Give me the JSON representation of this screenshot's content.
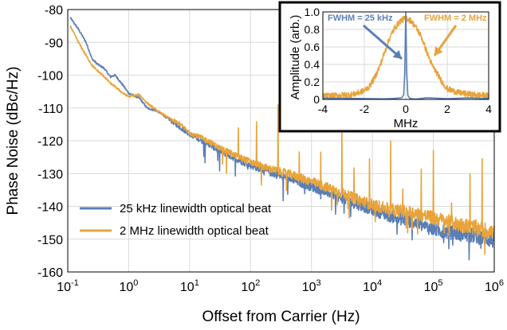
{
  "chart_data": [
    {
      "type": "line",
      "title": "",
      "xlabel": "Offset from Carrier (Hz)",
      "ylabel": "Phase Noise (dBc/Hz)",
      "xscale": "log",
      "xlim": [
        0.1,
        1000000
      ],
      "ylim": [
        -160,
        -80
      ],
      "x_ticks": [
        {
          "base": "10",
          "exp": "-1"
        },
        {
          "base": "10",
          "exp": "0"
        },
        {
          "base": "10",
          "exp": "1"
        },
        {
          "base": "10",
          "exp": "2"
        },
        {
          "base": "10",
          "exp": "3"
        },
        {
          "base": "10",
          "exp": "4"
        },
        {
          "base": "10",
          "exp": "5"
        },
        {
          "base": "10",
          "exp": "6"
        }
      ],
      "x_tick_values": [
        0.1,
        1,
        10,
        100,
        1000,
        10000,
        100000,
        1000000
      ],
      "y_ticks": [
        "-80",
        "-90",
        "-100",
        "-110",
        "-120",
        "-130",
        "-140",
        "-150",
        "-160"
      ],
      "y_tick_values": [
        -80,
        -90,
        -100,
        -110,
        -120,
        -130,
        -140,
        -150,
        -160
      ],
      "grid": true,
      "legend_position": "bottom-left",
      "series": [
        {
          "name": "25 kHz linewidth optical beat",
          "color": "#5b7fb5",
          "x": [
            0.11,
            0.15,
            0.2,
            0.25,
            0.3,
            0.4,
            0.5,
            0.6,
            0.8,
            1,
            1.5,
            2,
            3,
            5,
            7,
            10,
            20,
            30,
            50,
            100,
            200,
            500,
            1000,
            2000,
            5000,
            10000,
            20000,
            50000,
            100000,
            200000,
            500000,
            1000000
          ],
          "y": [
            -82.5,
            -86,
            -90,
            -95,
            -96.5,
            -98,
            -100.5,
            -100,
            -103,
            -105.5,
            -107,
            -110,
            -111,
            -114,
            -116,
            -118,
            -121,
            -123,
            -125,
            -127.5,
            -129.5,
            -132,
            -134,
            -136,
            -139,
            -141,
            -143,
            -145,
            -147,
            -148,
            -149,
            -150.5
          ]
        },
        {
          "name": "2 MHz linewidth optical beat",
          "color": "#e8a33a",
          "x": [
            0.11,
            0.15,
            0.2,
            0.25,
            0.3,
            0.4,
            0.5,
            0.6,
            0.8,
            1,
            1.5,
            2,
            3,
            5,
            7,
            10,
            20,
            30,
            50,
            100,
            200,
            500,
            1000,
            2000,
            5000,
            10000,
            20000,
            50000,
            100000,
            200000,
            500000,
            1000000
          ],
          "y": [
            -85,
            -90,
            -94,
            -97,
            -98.5,
            -100.5,
            -102.5,
            -103.5,
            -105.5,
            -106.5,
            -106,
            -108.5,
            -111,
            -113.5,
            -115,
            -117.5,
            -120,
            -122,
            -124,
            -126.5,
            -128.5,
            -130.5,
            -132.5,
            -134.5,
            -137.5,
            -139.5,
            -141,
            -142,
            -143.5,
            -145,
            -146.5,
            -148
          ]
        }
      ]
    },
    {
      "type": "line",
      "title": "",
      "xlabel": "MHz",
      "ylabel": "Amplitude (arb.)",
      "xlim": [
        -4,
        4
      ],
      "ylim": [
        0,
        1.0
      ],
      "x_ticks": [
        "-4",
        "-2",
        "0",
        "2",
        "4"
      ],
      "x_tick_values": [
        -4,
        -2,
        0,
        2,
        4
      ],
      "y_ticks": [
        "0",
        "0.2",
        "0.4",
        "0.6",
        "0.8",
        "1.0"
      ],
      "y_tick_values": [
        0,
        0.2,
        0.4,
        0.6,
        0.8,
        1.0
      ],
      "grid": true,
      "annotations": [
        {
          "text": "FWHM = 25 kHz",
          "color": "#5b7fb5"
        },
        {
          "text": "FWHM = 2 MHz",
          "color": "#e8a33a"
        }
      ],
      "series": [
        {
          "name": "",
          "color": "#e8a33a",
          "x": [
            -4,
            -3.5,
            -3,
            -2.5,
            -2,
            -1.75,
            -1.5,
            -1.25,
            -1,
            -0.75,
            -0.5,
            -0.25,
            0,
            0.25,
            0.5,
            0.75,
            1,
            1.25,
            1.5,
            1.75,
            2,
            2.5,
            3,
            3.5,
            4
          ],
          "y": [
            0.04,
            0.04,
            0.05,
            0.06,
            0.1,
            0.15,
            0.25,
            0.38,
            0.55,
            0.72,
            0.83,
            0.9,
            0.93,
            0.9,
            0.82,
            0.72,
            0.55,
            0.4,
            0.3,
            0.2,
            0.12,
            0.08,
            0.06,
            0.05,
            0.04
          ]
        },
        {
          "name": "",
          "color": "#5b7fb5",
          "x": [
            -4,
            -3,
            -2,
            -1,
            -0.5,
            -0.2,
            -0.1,
            -0.05,
            0,
            0.05,
            0.1,
            0.2,
            0.5,
            1,
            2,
            3,
            4
          ],
          "y": [
            0.01,
            0.01,
            0.01,
            0.01,
            0.01,
            0.02,
            0.05,
            0.3,
            1.0,
            0.3,
            0.05,
            0.02,
            0.01,
            0.01,
            0.01,
            0.01,
            0.01
          ]
        }
      ]
    }
  ]
}
